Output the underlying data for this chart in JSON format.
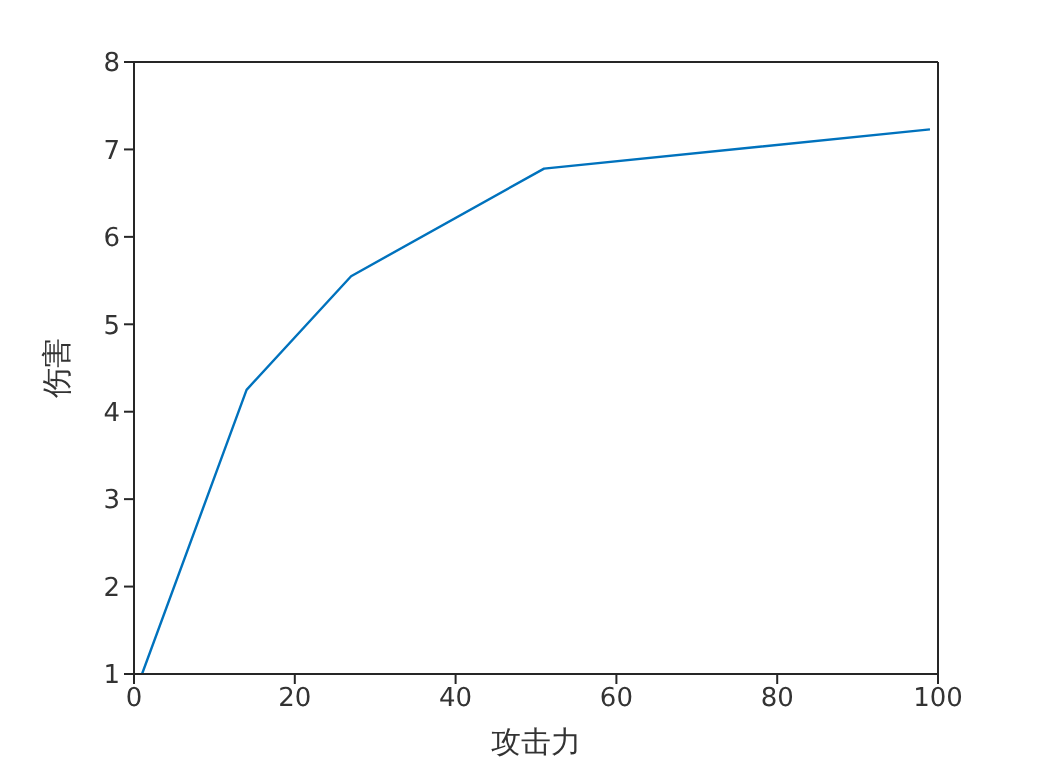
{
  "chart_data": {
    "type": "line",
    "xlabel": "攻击力",
    "ylabel": "伤害",
    "x": [
      1,
      14,
      27,
      51,
      99
    ],
    "series": [
      {
        "color": "#0072bd",
        "values": [
          1,
          4.25,
          5.55,
          6.78,
          7.23
        ]
      }
    ],
    "xlim": [
      0,
      100
    ],
    "xticks": [
      0,
      20,
      40,
      60,
      80,
      100
    ],
    "ylim": [
      1,
      8
    ],
    "yticks": [
      1,
      2,
      3,
      4,
      5,
      6,
      7,
      8
    ],
    "grid": false,
    "legend": false,
    "marker": "none",
    "line_style": "solid"
  }
}
